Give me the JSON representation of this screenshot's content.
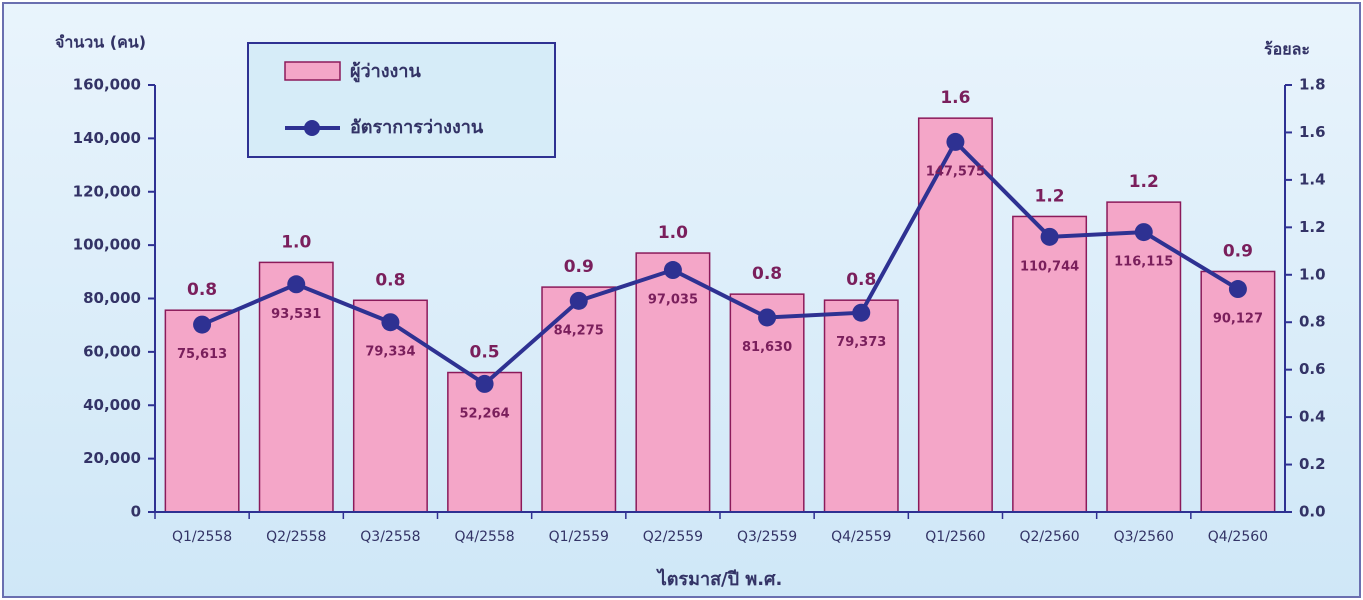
{
  "chart_data": {
    "type": "bar_line",
    "y_label": "จำนวน (คน)",
    "y2_label": "ร้อยละ",
    "x_label": "ไตรมาส/ปี พ.ศ.",
    "categories": [
      "Q1/2558",
      "Q2/2558",
      "Q3/2558",
      "Q4/2558",
      "Q1/2559",
      "Q2/2559",
      "Q3/2559",
      "Q4/2559",
      "Q1/2560",
      "Q2/2560",
      "Q3/2560",
      "Q4/2560"
    ],
    "series": [
      {
        "name": "ผู้ว่างงาน",
        "type": "bar",
        "color": "#f4a6c8",
        "edge": "#8b1a5a",
        "values": [
          75613,
          93531,
          79334,
          52264,
          84275,
          97035,
          81630,
          79373,
          147575,
          110744,
          116115,
          90127
        ],
        "value_labels": [
          "75,613",
          "93,531",
          "79,334",
          "52,264",
          "84,275",
          "97,035",
          "81,630",
          "79,373",
          "147,575",
          "110,744",
          "116,115",
          "90,127"
        ]
      },
      {
        "name": "อัตราการว่างงาน",
        "type": "line",
        "axis": "y2",
        "color": "#2e3192",
        "values": [
          0.79,
          0.96,
          0.8,
          0.54,
          0.89,
          1.02,
          0.82,
          0.84,
          1.56,
          1.16,
          1.18,
          0.94
        ],
        "value_labels": [
          "0.8",
          "1.0",
          "0.8",
          "0.5",
          "0.9",
          "1.0",
          "0.8",
          "0.8",
          "1.6",
          "1.2",
          "1.2",
          "0.9"
        ]
      }
    ],
    "ylim": [
      0,
      160000
    ],
    "yticks": [
      0,
      {
        "value": 20000,
        "label": "20,000"
      },
      {
        "value": 40000,
        "label": "40,000"
      },
      {
        "value": 60000,
        "label": "60,000"
      },
      {
        "value": 80000,
        "label": "80,000"
      },
      {
        "value": 100000,
        "label": "100,000"
      },
      {
        "value": 120000,
        "label": "120,000"
      },
      {
        "value": 140000,
        "label": "140,000"
      },
      {
        "value": 160000,
        "label": "160,000"
      }
    ],
    "y2lim": [
      0,
      1.8
    ],
    "y2ticks": [
      {
        "value": 0,
        "label": "0.0"
      },
      0.2,
      0.4,
      0.6,
      0.8,
      {
        "value": 1,
        "label": "1.0"
      },
      1.2,
      1.4,
      1.6,
      1.8
    ],
    "legend": "upper left"
  }
}
